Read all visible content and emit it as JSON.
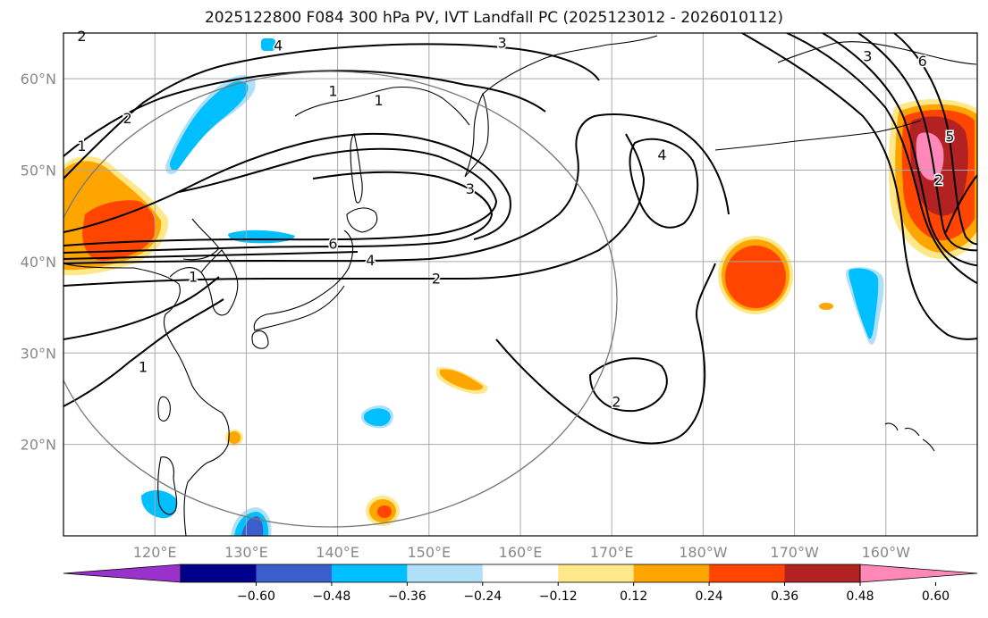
{
  "title": "2025122800 F084 300 hPa PV, IVT Landfall PC (2025123012 - 2026010112)",
  "chart_data": {
    "type": "heatmap",
    "title": "2025122800 F084 300 hPa PV, IVT Landfall PC (2025123012 - 2026010112)",
    "x_range": [
      110,
      210
    ],
    "y_range": [
      10,
      65
    ],
    "lat_ticks": [
      "20°N",
      "30°N",
      "40°N",
      "50°N",
      "60°N"
    ],
    "lat_values": [
      20,
      30,
      40,
      50,
      60
    ],
    "lon_ticks": [
      "120°E",
      "130°E",
      "140°E",
      "150°E",
      "160°E",
      "170°E",
      "180°W",
      "170°W",
      "160°W"
    ],
    "lon_values": [
      120,
      130,
      140,
      150,
      160,
      170,
      180,
      190,
      200
    ],
    "grid": true,
    "colorbar": {
      "ticks": [
        "-0.60",
        "-0.48",
        "-0.36",
        "-0.24",
        "-0.12",
        "0.12",
        "0.24",
        "0.36",
        "0.48",
        "0.60"
      ],
      "colors": [
        "#9932cc",
        "#00008b",
        "#3a5fcd",
        "#00bfff",
        "#b0e0f8",
        "#ffffff",
        "#ffe88a",
        "#ffa500",
        "#ff4500",
        "#b22222",
        "#ff88b8"
      ],
      "extend": "both"
    },
    "contour_labels": [
      {
        "text": "2",
        "lon": 112,
        "lat": 64.5
      },
      {
        "text": "4",
        "lon": 133.5,
        "lat": 63.5
      },
      {
        "text": "3",
        "lon": 158,
        "lat": 63.8
      },
      {
        "text": "3",
        "lon": 198,
        "lat": 62.3
      },
      {
        "text": "6",
        "lon": 204,
        "lat": 61.8
      },
      {
        "text": "1",
        "lon": 139.5,
        "lat": 58.5
      },
      {
        "text": "1",
        "lon": 144.5,
        "lat": 57.5
      },
      {
        "text": "2",
        "lon": 117,
        "lat": 55.5
      },
      {
        "text": "1",
        "lon": 112,
        "lat": 52.5
      },
      {
        "text": "4",
        "lon": 175.5,
        "lat": 51.5
      },
      {
        "text": "5",
        "lon": 207,
        "lat": 53.5
      },
      {
        "text": "3",
        "lon": 154.5,
        "lat": 47.8
      },
      {
        "text": "2",
        "lon": 205.8,
        "lat": 48.8
      },
      {
        "text": "6",
        "lon": 139.5,
        "lat": 41.8
      },
      {
        "text": "4",
        "lon": 143.6,
        "lat": 40
      },
      {
        "text": "1",
        "lon": 124.2,
        "lat": 38.2
      },
      {
        "text": "2",
        "lon": 150.8,
        "lat": 38
      },
      {
        "text": "1",
        "lon": 118.7,
        "lat": 28.3
      },
      {
        "text": "2",
        "lon": 170.5,
        "lat": 24.5
      }
    ]
  }
}
